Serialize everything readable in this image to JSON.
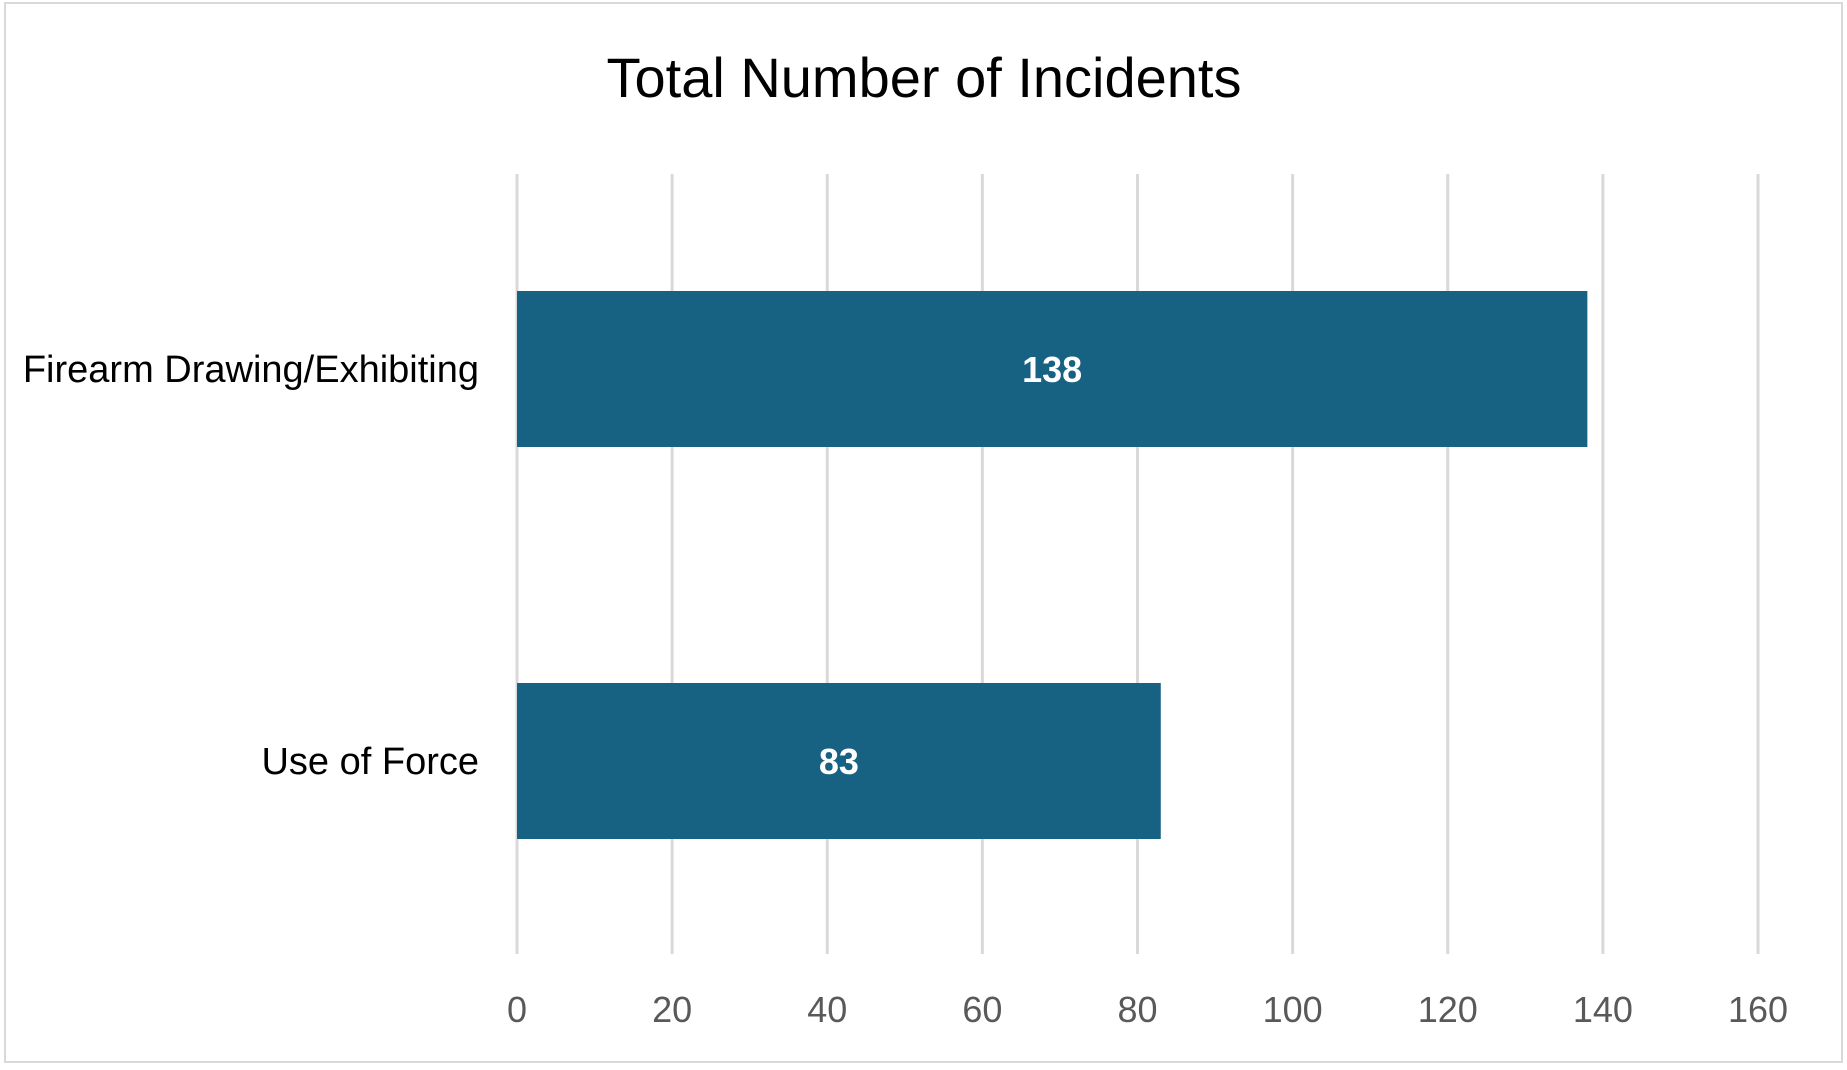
{
  "chart_data": {
    "type": "bar",
    "orientation": "horizontal",
    "title": "Total Number of Incidents",
    "categories": [
      "Firearm Drawing/Exhibiting",
      "Use of Force"
    ],
    "values": [
      138,
      83
    ],
    "data_labels": [
      "138",
      "83"
    ],
    "xlim": [
      0,
      160
    ],
    "x_ticks": [
      "0",
      "20",
      "40",
      "60",
      "80",
      "100",
      "120",
      "140",
      "160"
    ],
    "xlabel": "",
    "ylabel": "",
    "grid": "vertical",
    "legend": "none",
    "bar_color": "#176182"
  }
}
